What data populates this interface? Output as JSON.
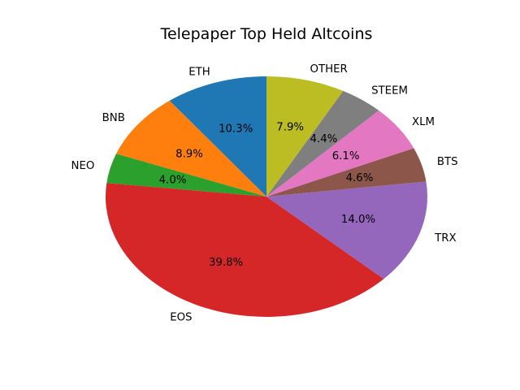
{
  "chart_data": {
    "type": "pie",
    "title": "Telepaper Top Held Altcoins",
    "labels": [
      "ETH",
      "BNB",
      "NEO",
      "EOS",
      "TRX",
      "BTS",
      "XLM",
      "STEEM",
      "OTHER"
    ],
    "values": [
      10.3,
      8.9,
      4.0,
      39.8,
      14.0,
      4.6,
      6.1,
      4.4,
      7.9
    ],
    "pct_labels": [
      "10.3%",
      "8.9%",
      "4.0%",
      "39.8%",
      "14.0%",
      "4.6%",
      "6.1%",
      "4.4%",
      "7.9%"
    ],
    "colors": [
      "#1f77b4",
      "#ff7f0e",
      "#2ca02c",
      "#d62728",
      "#9467bd",
      "#8c564b",
      "#e377c2",
      "#7f7f7f",
      "#bcbd22"
    ],
    "start_angle": 90,
    "counterclockwise": true,
    "label_distance": 1.1,
    "pct_distance": 0.6,
    "text_color": "#000000",
    "background": "#ffffff",
    "legend": "none",
    "grid": "off"
  }
}
